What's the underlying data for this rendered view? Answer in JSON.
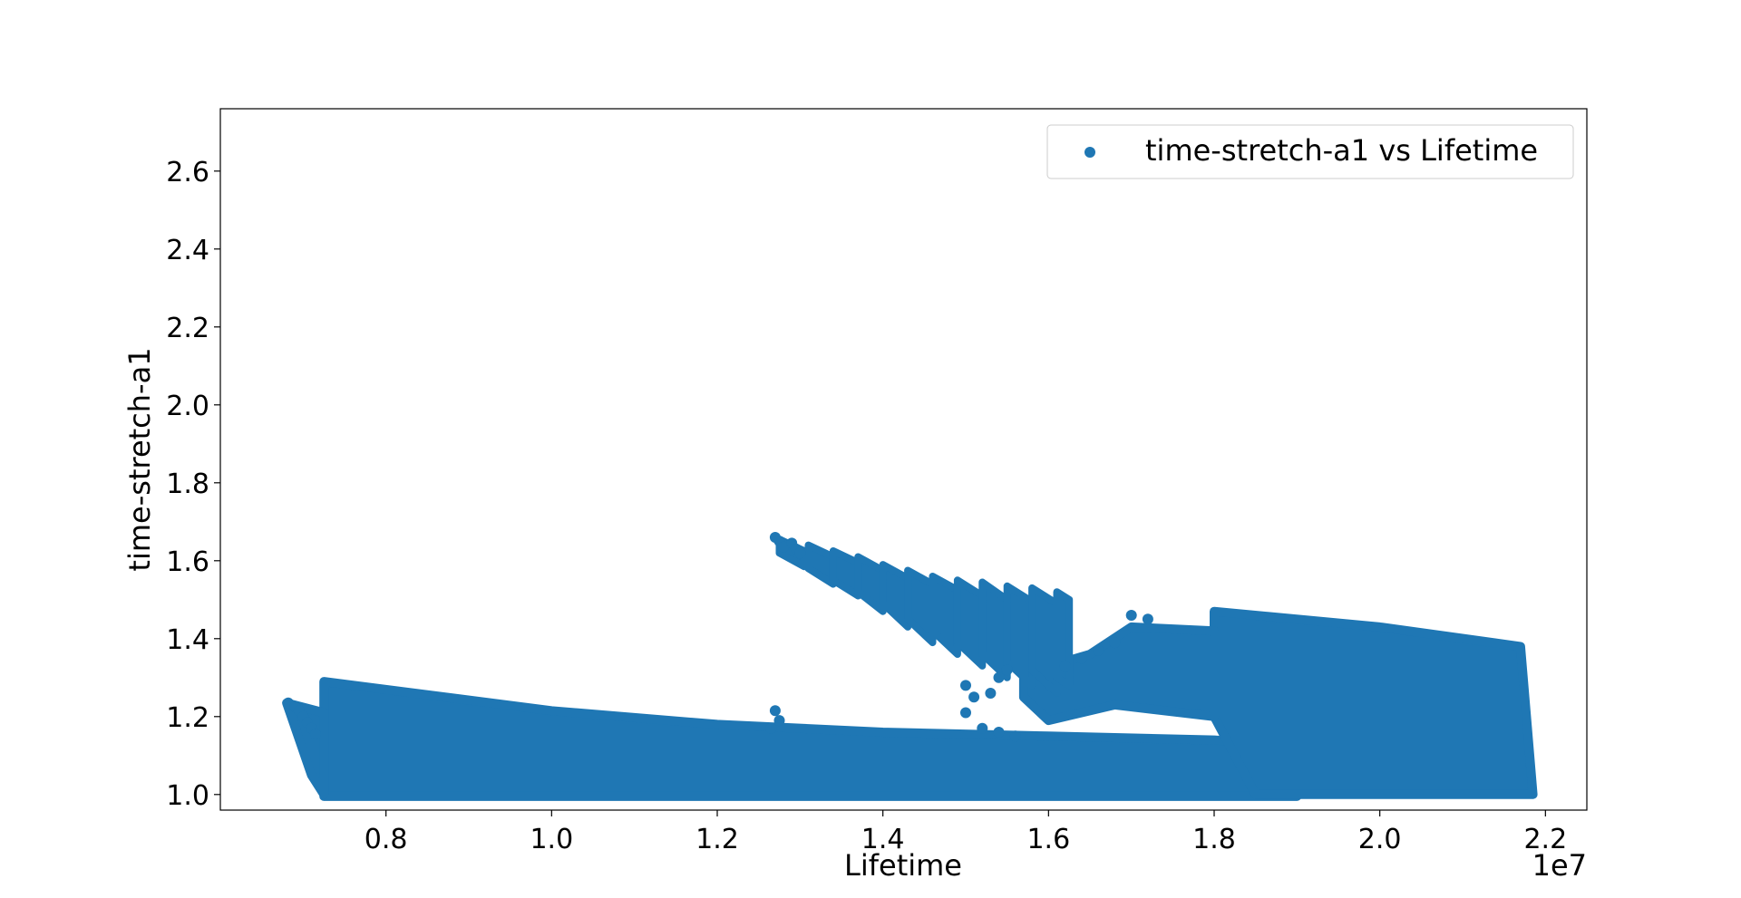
{
  "chart_data": {
    "type": "scatter",
    "xlabel": "Lifetime",
    "ylabel": "time-stretch-a1",
    "x_offset_text": "1e7",
    "x_scale_multiplier": 10000000,
    "xlim": [
      0.6,
      2.25
    ],
    "ylim": [
      0.96,
      2.76
    ],
    "x_ticks": [
      0.8,
      1.0,
      1.2,
      1.4,
      1.6,
      1.8,
      2.0,
      2.2
    ],
    "x_tick_labels": [
      "0.8",
      "1.0",
      "1.2",
      "1.4",
      "1.6",
      "1.8",
      "2.0",
      "2.2"
    ],
    "y_ticks": [
      1.0,
      1.2,
      1.4,
      1.6,
      1.8,
      2.0,
      2.2,
      2.4,
      2.6
    ],
    "y_tick_labels": [
      "1.0",
      "1.2",
      "1.4",
      "1.6",
      "1.8",
      "2.0",
      "2.2",
      "2.4",
      "2.6"
    ],
    "grid": false,
    "legend": {
      "position": "top-right",
      "entries": [
        "time-stretch-a1 vs Lifetime"
      ]
    },
    "series": [
      {
        "name": "time-stretch-a1 vs Lifetime",
        "color": "#1f77b4",
        "regions": [
          {
            "shape": "polygon",
            "points": [
              [
                0.725,
                1.29
              ],
              [
                1.0,
                1.215
              ],
              [
                1.2,
                1.18
              ],
              [
                1.4,
                1.16
              ],
              [
                1.6,
                1.15
              ],
              [
                1.8,
                1.14
              ],
              [
                1.9,
                1.125
              ],
              [
                1.9,
                0.995
              ],
              [
                0.725,
                0.995
              ]
            ]
          },
          {
            "shape": "polygon",
            "points": [
              [
                0.68,
                1.235
              ],
              [
                0.725,
                1.21
              ],
              [
                0.725,
                1.0
              ],
              [
                0.71,
                1.05
              ]
            ]
          },
          {
            "shape": "polygon",
            "points": [
              [
                1.8,
                1.47
              ],
              [
                2.0,
                1.43
              ],
              [
                2.17,
                1.38
              ],
              [
                2.185,
                1.0
              ],
              [
                1.85,
                1.0
              ],
              [
                1.8,
                1.2
              ]
            ]
          },
          {
            "shape": "polygon",
            "points": [
              [
                1.57,
                1.31
              ],
              [
                1.65,
                1.36
              ],
              [
                1.7,
                1.43
              ],
              [
                1.8,
                1.42
              ],
              [
                1.8,
                1.2
              ],
              [
                1.68,
                1.23
              ],
              [
                1.6,
                1.19
              ],
              [
                1.57,
                1.25
              ]
            ]
          }
        ],
        "points": [
          [
            0.682,
            1.235
          ],
          [
            0.69,
            1.225
          ],
          [
            0.695,
            1.215
          ],
          [
            0.7,
            1.2
          ],
          [
            0.705,
            1.185
          ],
          [
            0.71,
            1.17
          ],
          [
            0.715,
            1.155
          ],
          [
            1.27,
            1.66
          ],
          [
            1.275,
            1.65
          ],
          [
            1.28,
            1.635
          ],
          [
            1.29,
            1.645
          ],
          [
            1.295,
            1.63
          ],
          [
            1.3,
            1.62
          ],
          [
            1.27,
            1.215
          ],
          [
            1.275,
            1.19
          ],
          [
            1.265,
            1.17
          ],
          [
            1.5,
            1.28
          ],
          [
            1.51,
            1.25
          ],
          [
            1.5,
            1.21
          ],
          [
            1.53,
            1.26
          ],
          [
            1.54,
            1.3
          ],
          [
            1.55,
            1.32
          ],
          [
            1.52,
            1.17
          ],
          [
            1.54,
            1.16
          ],
          [
            1.56,
            1.15
          ],
          [
            1.62,
            1.33
          ],
          [
            1.64,
            1.35
          ],
          [
            1.66,
            1.37
          ],
          [
            1.68,
            1.39
          ],
          [
            1.7,
            1.46
          ],
          [
            1.72,
            1.45
          ]
        ],
        "streaks": [
          {
            "x": [
              1.275,
              1.305
            ],
            "y_top": [
              1.655,
              1.625
            ],
            "y_bottom": [
              1.62,
              1.585
            ]
          },
          {
            "x": [
              1.31,
              1.34
            ],
            "y_top": [
              1.64,
              1.61
            ],
            "y_bottom": [
              1.58,
              1.54
            ]
          },
          {
            "x": [
              1.34,
              1.37
            ],
            "y_top": [
              1.625,
              1.595
            ],
            "y_bottom": [
              1.55,
              1.51
            ]
          },
          {
            "x": [
              1.37,
              1.4
            ],
            "y_top": [
              1.61,
              1.575
            ],
            "y_bottom": [
              1.52,
              1.47
            ]
          },
          {
            "x": [
              1.4,
              1.43
            ],
            "y_top": [
              1.59,
              1.555
            ],
            "y_bottom": [
              1.49,
              1.43
            ]
          },
          {
            "x": [
              1.43,
              1.46
            ],
            "y_top": [
              1.575,
              1.54
            ],
            "y_bottom": [
              1.45,
              1.39
            ]
          },
          {
            "x": [
              1.46,
              1.49
            ],
            "y_top": [
              1.56,
              1.525
            ],
            "y_bottom": [
              1.42,
              1.36
            ]
          },
          {
            "x": [
              1.49,
              1.52
            ],
            "y_top": [
              1.55,
              1.51
            ],
            "y_bottom": [
              1.39,
              1.33
            ]
          },
          {
            "x": [
              1.52,
              1.55
            ],
            "y_top": [
              1.545,
              1.5
            ],
            "y_bottom": [
              1.36,
              1.3
            ]
          },
          {
            "x": [
              1.55,
              1.58
            ],
            "y_top": [
              1.535,
              1.495
            ],
            "y_bottom": [
              1.34,
              1.28
            ]
          },
          {
            "x": [
              1.58,
              1.61
            ],
            "y_top": [
              1.53,
              1.49
            ],
            "y_bottom": [
              1.32,
              1.26
            ]
          },
          {
            "x": [
              1.61,
              1.625
            ],
            "y_top": [
              1.52,
              1.5
            ],
            "y_bottom": [
              1.3,
              1.28
            ]
          }
        ]
      }
    ]
  }
}
